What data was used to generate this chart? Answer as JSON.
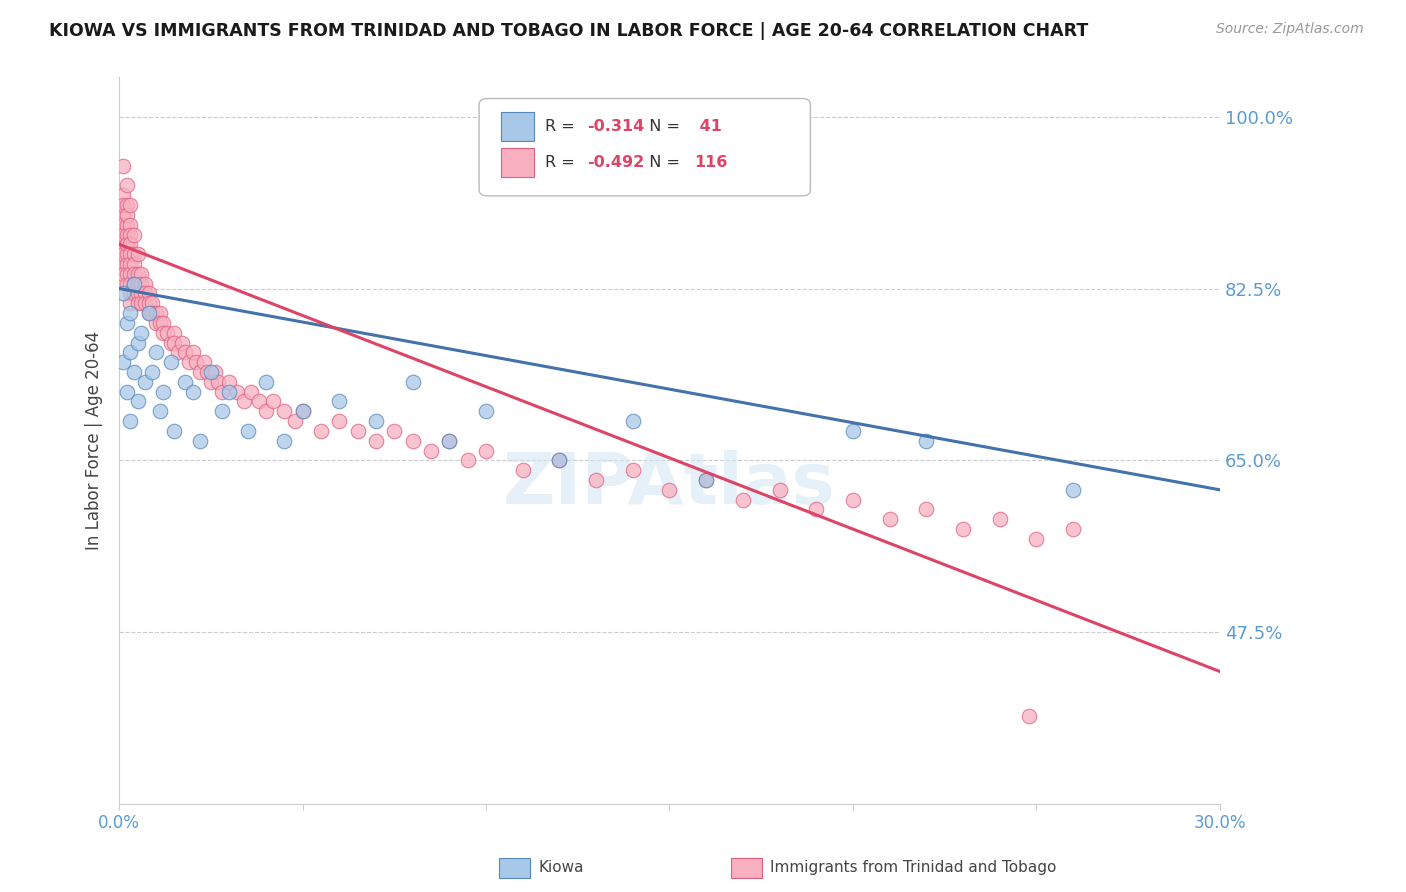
{
  "title": "KIOWA VS IMMIGRANTS FROM TRINIDAD AND TOBAGO IN LABOR FORCE | AGE 20-64 CORRELATION CHART",
  "source": "Source: ZipAtlas.com",
  "ylabel": "In Labor Force | Age 20-64",
  "kiowa_R": -0.314,
  "kiowa_N": 41,
  "tt_R": -0.492,
  "tt_N": 116,
  "xlim": [
    0.0,
    0.3
  ],
  "ylim": [
    0.3,
    1.04
  ],
  "yticks": [
    0.475,
    0.65,
    0.825,
    1.0
  ],
  "ytick_labels": [
    "47.5%",
    "65.0%",
    "82.5%",
    "100.0%"
  ],
  "xtick_positions": [
    0.0,
    0.05,
    0.1,
    0.15,
    0.2,
    0.25,
    0.3
  ],
  "xtick_labels": [
    "0.0%",
    "",
    "",
    "",
    "",
    "",
    "30.0%"
  ],
  "blue_fill": "#a8c8e8",
  "blue_edge": "#5588bb",
  "pink_fill": "#f8b0c0",
  "pink_edge": "#e06080",
  "blue_line": "#4472aa",
  "pink_line": "#dd4466",
  "axis_color": "#5b9bd5",
  "grid_color": "#cccccc",
  "background": "#ffffff",
  "watermark": "ZIPAtlas",
  "watermark_color": "#d0e4f4",
  "kiowa_x": [
    0.001,
    0.001,
    0.002,
    0.002,
    0.003,
    0.003,
    0.003,
    0.004,
    0.004,
    0.005,
    0.005,
    0.006,
    0.007,
    0.008,
    0.009,
    0.01,
    0.011,
    0.012,
    0.014,
    0.015,
    0.018,
    0.02,
    0.022,
    0.025,
    0.028,
    0.03,
    0.035,
    0.04,
    0.045,
    0.05,
    0.06,
    0.07,
    0.08,
    0.09,
    0.1,
    0.12,
    0.14,
    0.16,
    0.2,
    0.22,
    0.26
  ],
  "kiowa_y": [
    0.82,
    0.75,
    0.79,
    0.72,
    0.76,
    0.8,
    0.69,
    0.74,
    0.83,
    0.77,
    0.71,
    0.78,
    0.73,
    0.8,
    0.74,
    0.76,
    0.7,
    0.72,
    0.75,
    0.68,
    0.73,
    0.72,
    0.67,
    0.74,
    0.7,
    0.72,
    0.68,
    0.73,
    0.67,
    0.7,
    0.71,
    0.69,
    0.73,
    0.67,
    0.7,
    0.65,
    0.69,
    0.63,
    0.68,
    0.67,
    0.62
  ],
  "tt_x": [
    0.001,
    0.001,
    0.001,
    0.001,
    0.001,
    0.001,
    0.001,
    0.001,
    0.001,
    0.001,
    0.001,
    0.001,
    0.002,
    0.002,
    0.002,
    0.002,
    0.002,
    0.002,
    0.002,
    0.002,
    0.002,
    0.002,
    0.002,
    0.003,
    0.003,
    0.003,
    0.003,
    0.003,
    0.003,
    0.003,
    0.003,
    0.003,
    0.003,
    0.004,
    0.004,
    0.004,
    0.004,
    0.004,
    0.004,
    0.005,
    0.005,
    0.005,
    0.005,
    0.005,
    0.006,
    0.006,
    0.006,
    0.006,
    0.007,
    0.007,
    0.007,
    0.008,
    0.008,
    0.008,
    0.009,
    0.009,
    0.01,
    0.01,
    0.011,
    0.011,
    0.012,
    0.012,
    0.013,
    0.014,
    0.015,
    0.015,
    0.016,
    0.017,
    0.018,
    0.019,
    0.02,
    0.021,
    0.022,
    0.023,
    0.024,
    0.025,
    0.026,
    0.027,
    0.028,
    0.03,
    0.032,
    0.034,
    0.036,
    0.038,
    0.04,
    0.042,
    0.045,
    0.048,
    0.05,
    0.055,
    0.06,
    0.065,
    0.07,
    0.075,
    0.08,
    0.085,
    0.09,
    0.095,
    0.1,
    0.11,
    0.12,
    0.13,
    0.14,
    0.15,
    0.16,
    0.17,
    0.18,
    0.19,
    0.2,
    0.21,
    0.22,
    0.23,
    0.24,
    0.25,
    0.26,
    0.248
  ],
  "tt_y": [
    0.95,
    0.92,
    0.9,
    0.88,
    0.87,
    0.86,
    0.85,
    0.84,
    0.91,
    0.89,
    0.88,
    0.86,
    0.93,
    0.91,
    0.89,
    0.88,
    0.87,
    0.86,
    0.85,
    0.84,
    0.83,
    0.9,
    0.87,
    0.91,
    0.89,
    0.88,
    0.87,
    0.86,
    0.85,
    0.84,
    0.83,
    0.82,
    0.81,
    0.88,
    0.86,
    0.85,
    0.84,
    0.83,
    0.82,
    0.86,
    0.84,
    0.83,
    0.82,
    0.81,
    0.84,
    0.83,
    0.82,
    0.81,
    0.83,
    0.82,
    0.81,
    0.82,
    0.81,
    0.8,
    0.81,
    0.8,
    0.8,
    0.79,
    0.8,
    0.79,
    0.79,
    0.78,
    0.78,
    0.77,
    0.78,
    0.77,
    0.76,
    0.77,
    0.76,
    0.75,
    0.76,
    0.75,
    0.74,
    0.75,
    0.74,
    0.73,
    0.74,
    0.73,
    0.72,
    0.73,
    0.72,
    0.71,
    0.72,
    0.71,
    0.7,
    0.71,
    0.7,
    0.69,
    0.7,
    0.68,
    0.69,
    0.68,
    0.67,
    0.68,
    0.67,
    0.66,
    0.67,
    0.65,
    0.66,
    0.64,
    0.65,
    0.63,
    0.64,
    0.62,
    0.63,
    0.61,
    0.62,
    0.6,
    0.61,
    0.59,
    0.6,
    0.58,
    0.59,
    0.57,
    0.58,
    0.39
  ]
}
